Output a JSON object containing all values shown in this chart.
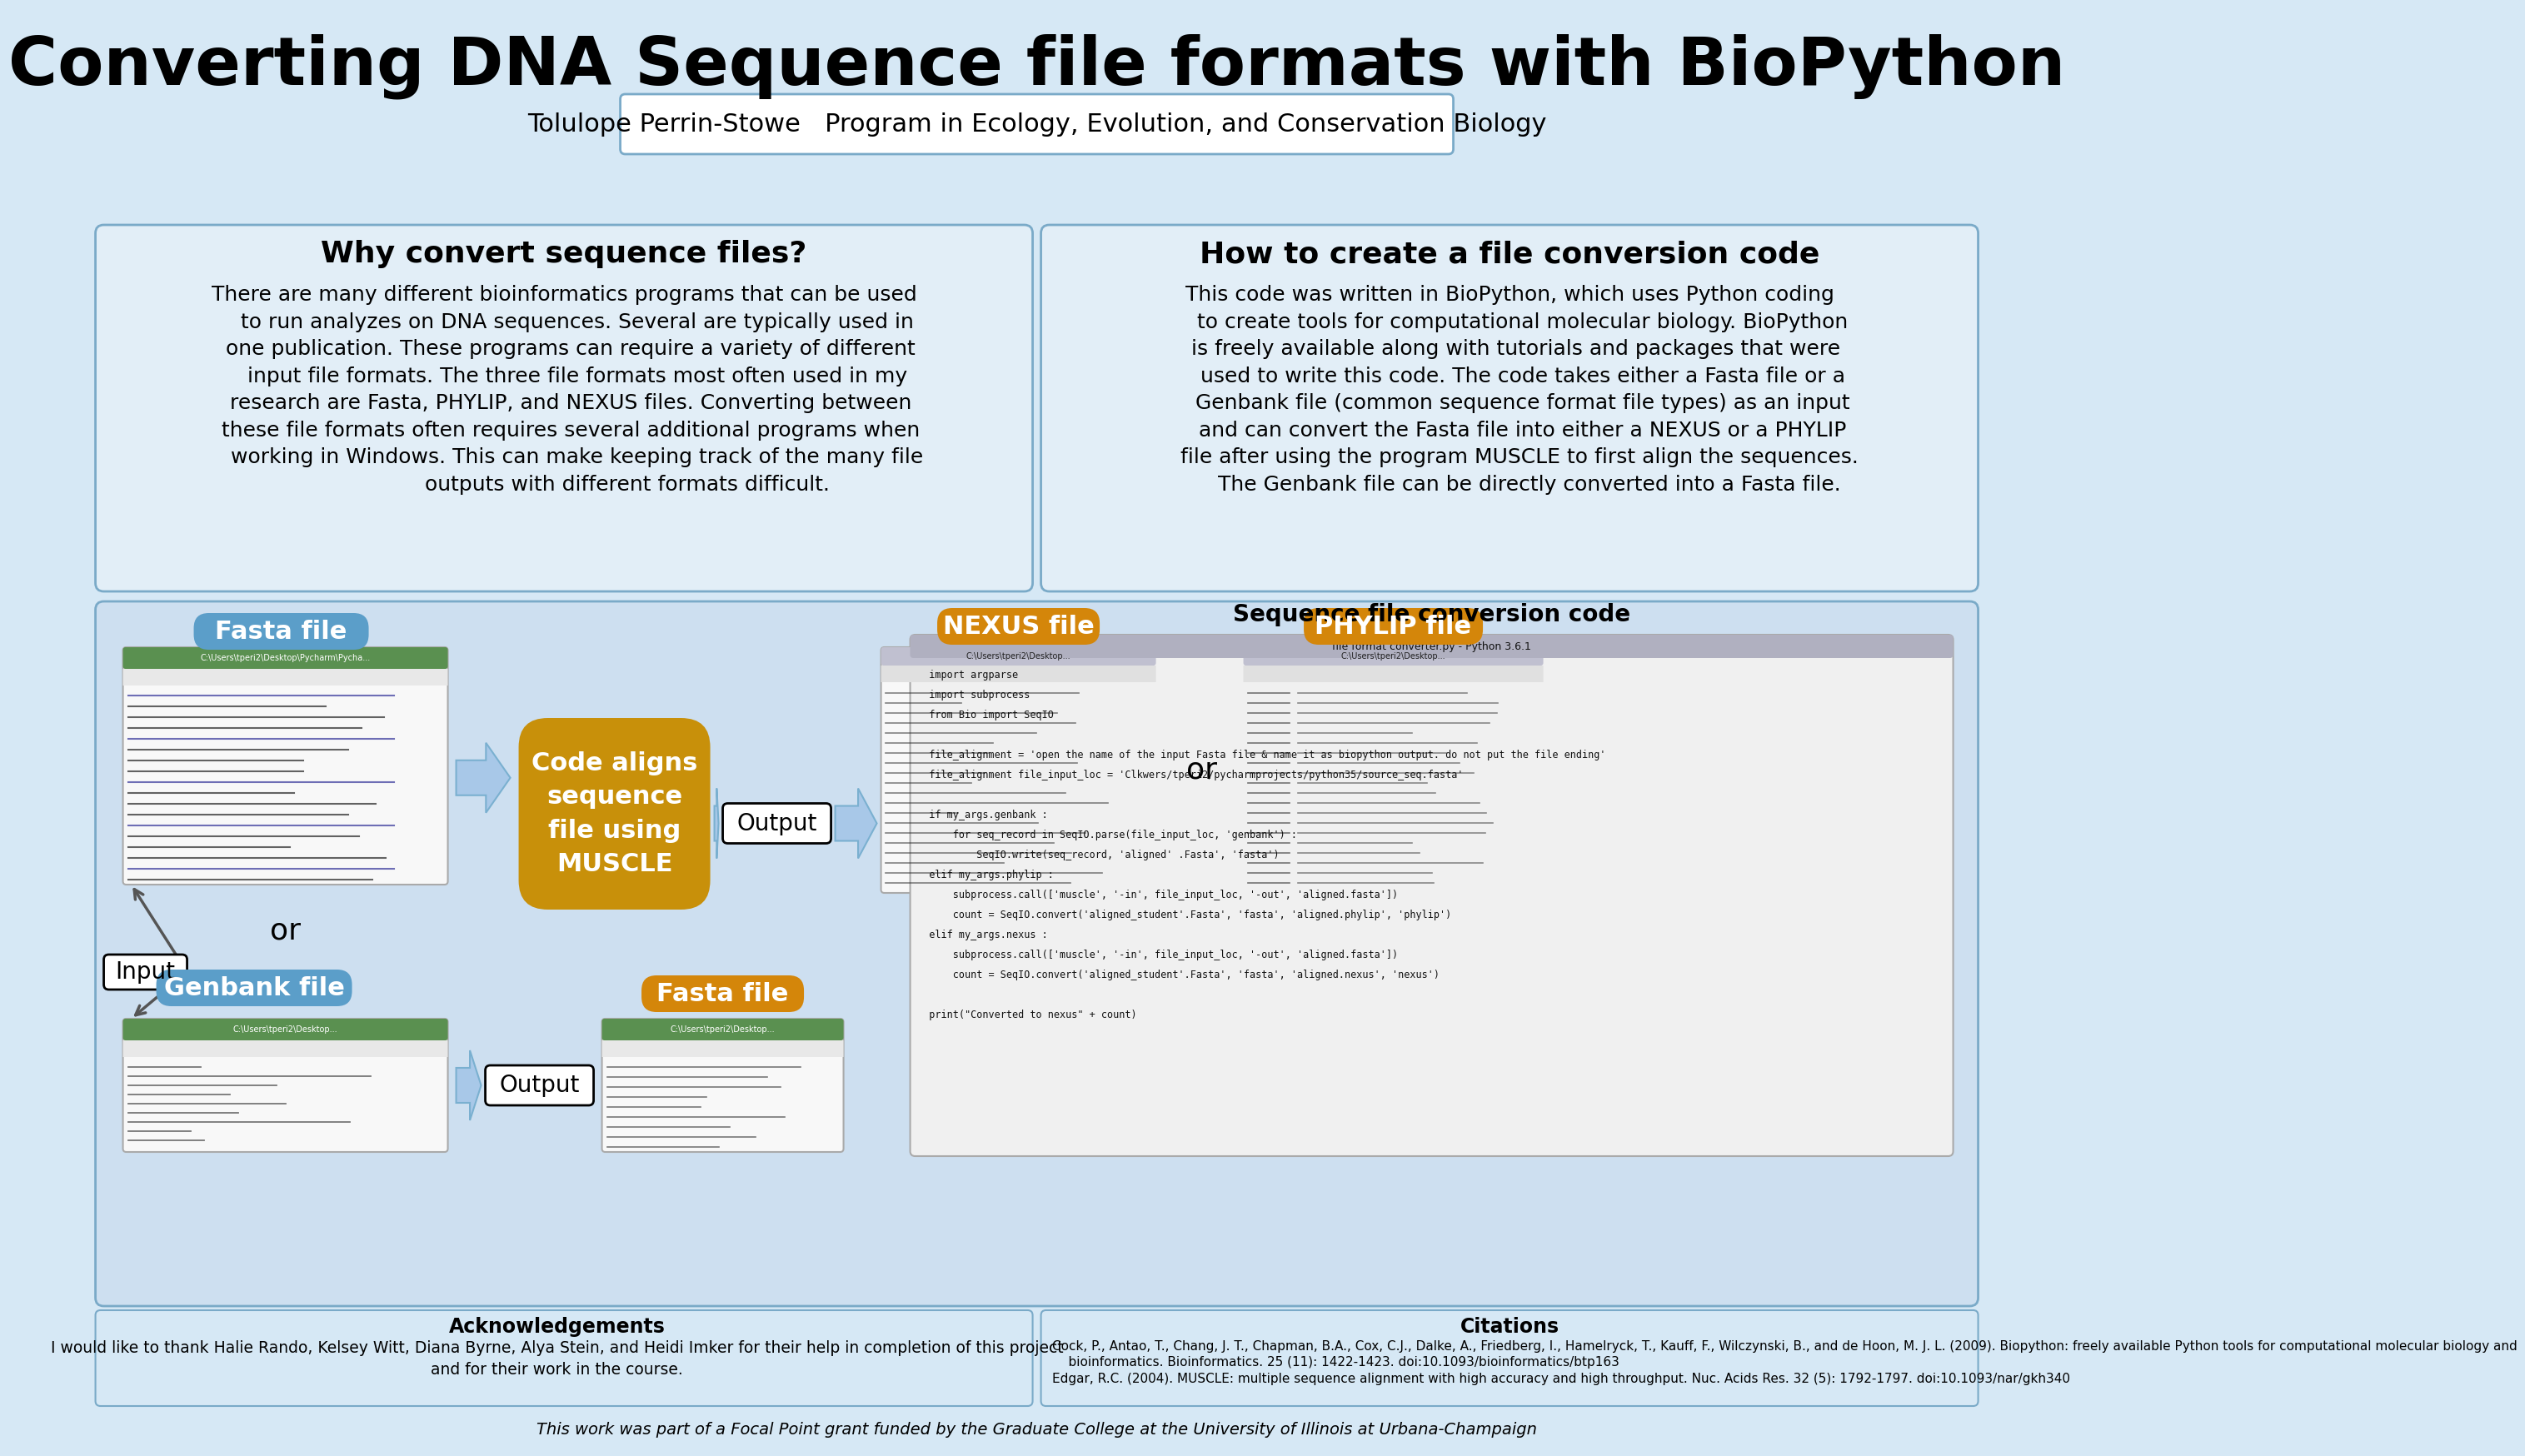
{
  "title": "Converting DNA Sequence file formats with BioPython",
  "subtitle": "Tolulope Perrin-Stowe   Program in Ecology, Evolution, and Conservation Biology",
  "bg_color": "#d6e8f5",
  "box_border": "#7aaac8",
  "left_header": "Why convert sequence files?",
  "right_header": "How to create a file conversion code",
  "left_text": "There are many different bioinformatics programs that can be used\n    to run analyzes on DNA sequences. Several are typically used in\n  one publication. These programs can require a variety of different\n    input file formats. The three file formats most often used in my\n  research are Fasta, PHYLIP, and NEXUS files. Converting between\n  these file formats often requires several additional programs when\n    working in Windows. This can make keeping track of the many file\n                   outputs with different formats difficult.",
  "right_text": "This code was written in BioPython, which uses Python coding\n    to create tools for computational molecular biology. BioPython\n  is freely available along with tutorials and packages that were\n    used to write this code. The code takes either a Fasta file or a\n    Genbank file (common sequence format file types) as an input\n    and can convert the Fasta file into either a NEXUS or a PHYLIP\n   file after using the program MUSCLE to first align the sequences.\n      The Genbank file can be directly converted into a Fasta file.",
  "fasta_label": "Fasta file",
  "genbank_label": "Genbank file",
  "nexus_label": "NEXUS file",
  "phylip_label": "PHYLIP file",
  "fasta_out_label": "Fasta file",
  "muscle_label": "Code aligns\nsequence\nfile using\nMUSCLE",
  "output_label1": "Output",
  "output_label2": "Output",
  "input_label": "Input",
  "or_label1": "or",
  "or_label2": "or",
  "seq_conv_label": "Sequence file conversion code",
  "ack_header": "Acknowledgements",
  "ack_text": "I would like to thank Halie Rando, Kelsey Witt, Diana Byrne, Alya Stein, and Heidi Imker for their help in completion of this project\nand for their work in the course.",
  "cit_header": "Citations",
  "cit_text1": "Cock, P., Antao, T., Chang, J. T., Chapman, B.A., Cox, C.J., Dalke, A., Friedberg, I., Hamelryck, T., Kauff, F., Wilczynski, B., and de Hoon, M. J. L. (2009). Biopython: freely available Python tools for computational molecular biology and\n    bioinformatics. Bioinformatics. 25 (11): 1422-1423. doi:10.1093/bioinformatics/btp163",
  "cit_text2": "Edgar, R.C. (2004). MUSCLE: multiple sequence alignment with high accuracy and high throughput. Nuc. Acids Res. 32 (5): 1792-1797. doi:10.1093/nar/gkh340",
  "footer": "This work was part of a Focal Point grant funded by the Graduate College at the University of Illinois at Urbana-Champaign",
  "blue_label_color": "#5b9ec9",
  "orange_label_color": "#d4860a",
  "muscle_color": "#c8900a",
  "arrow_fill": "#a8c8e8",
  "arrow_edge": "#7ab0d0"
}
